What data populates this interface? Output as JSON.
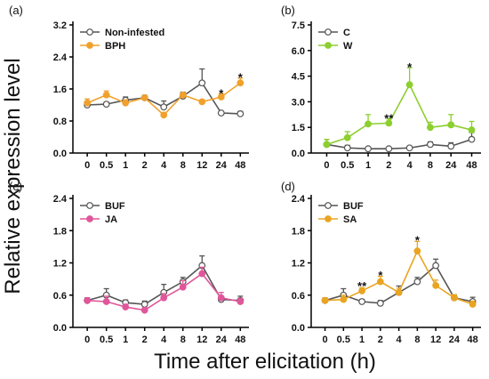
{
  "figure": {
    "ylabel": "Relative expression level",
    "xlabel": "Time after elicitation (h)"
  },
  "chart_data": [
    {
      "type": "line",
      "panel": "(a)",
      "categories": [
        "0",
        "0.5",
        "1",
        "2",
        "4",
        "8",
        "12",
        "24",
        "48"
      ],
      "yticks": [
        "0.0",
        "0.8",
        "1.6",
        "2.4",
        "3.2"
      ],
      "ylim": [
        0,
        3.2
      ],
      "legend_position": "top-left",
      "series": [
        {
          "name": "Non-infested",
          "color": "#555555",
          "marker": "open-circle",
          "values": [
            1.2,
            1.22,
            1.32,
            1.38,
            1.15,
            1.42,
            1.75,
            1.0,
            0.98
          ],
          "errors": [
            0.05,
            0.05,
            0.08,
            0.06,
            0.15,
            0.1,
            0.35,
            0.04,
            0.06
          ]
        },
        {
          "name": "BPH",
          "color": "#f0a12c",
          "marker": "filled-circle",
          "values": [
            1.25,
            1.45,
            1.25,
            1.38,
            0.95,
            1.45,
            1.28,
            1.4,
            1.75
          ],
          "errors": [
            0.1,
            0.1,
            0.08,
            0.05,
            0.05,
            0.05,
            0.05,
            0.08,
            0.12
          ]
        }
      ],
      "annotations": [
        {
          "category": "24",
          "text": "*",
          "value": 1.5
        },
        {
          "category": "48",
          "text": "*",
          "value": 1.9
        }
      ]
    },
    {
      "type": "line",
      "panel": "(b)",
      "categories": [
        "0",
        "0.5",
        "1",
        "2",
        "4",
        "8",
        "24",
        "48"
      ],
      "yticks": [
        "0.0",
        "1.5",
        "3.0",
        "4.5",
        "6.0",
        "7.5"
      ],
      "ylim": [
        0,
        7.5
      ],
      "legend_position": "top-left",
      "series": [
        {
          "name": "C",
          "color": "#555555",
          "marker": "open-circle",
          "values": [
            0.5,
            0.3,
            0.25,
            0.25,
            0.3,
            0.5,
            0.4,
            0.8
          ],
          "errors": [
            0.3,
            0.15,
            0.1,
            0.08,
            0.1,
            0.15,
            0.2,
            0.4
          ]
        },
        {
          "name": "W",
          "color": "#8ccf2e",
          "marker": "filled-circle",
          "values": [
            0.5,
            0.9,
            1.7,
            1.75,
            4.0,
            1.5,
            1.65,
            1.35
          ],
          "errors": [
            0.3,
            0.35,
            0.55,
            0.25,
            1.0,
            0.3,
            0.6,
            0.5
          ]
        }
      ],
      "annotations": [
        {
          "category": "2",
          "text": "**",
          "value": 2.05
        },
        {
          "category": "4",
          "text": "*",
          "value": 5.05
        }
      ]
    },
    {
      "type": "line",
      "panel": "(c)",
      "categories": [
        "0",
        "0.5",
        "1",
        "2",
        "4",
        "8",
        "12",
        "24",
        "48"
      ],
      "yticks": [
        "0.0",
        "0.6",
        "1.2",
        "1.8",
        "2.4"
      ],
      "ylim": [
        0,
        2.4
      ],
      "legend_position": "top-left",
      "series": [
        {
          "name": "BUF",
          "color": "#555555",
          "marker": "open-circle",
          "values": [
            0.5,
            0.6,
            0.46,
            0.43,
            0.65,
            0.85,
            1.15,
            0.52,
            0.5
          ],
          "errors": [
            0.05,
            0.12,
            0.05,
            0.06,
            0.15,
            0.08,
            0.18,
            0.06,
            0.08
          ]
        },
        {
          "name": "JA",
          "color": "#e0569a",
          "marker": "filled-circle",
          "values": [
            0.5,
            0.48,
            0.38,
            0.32,
            0.55,
            0.75,
            1.0,
            0.55,
            0.48
          ],
          "errors": [
            0.04,
            0.1,
            0.05,
            0.05,
            0.08,
            0.12,
            0.12,
            0.1,
            0.06
          ]
        }
      ],
      "annotations": []
    },
    {
      "type": "line",
      "panel": "(d)",
      "categories": [
        "0",
        "0.5",
        "1",
        "2",
        "4",
        "8",
        "12",
        "24",
        "48"
      ],
      "yticks": [
        "0.0",
        "0.6",
        "1.2",
        "1.8",
        "2.4"
      ],
      "ylim": [
        0,
        2.4
      ],
      "legend_position": "top-left",
      "series": [
        {
          "name": "BUF",
          "color": "#555555",
          "marker": "open-circle",
          "values": [
            0.5,
            0.6,
            0.48,
            0.45,
            0.65,
            0.85,
            1.15,
            0.55,
            0.48
          ],
          "errors": [
            0.05,
            0.12,
            0.04,
            0.05,
            0.12,
            0.08,
            0.12,
            0.06,
            0.08
          ]
        },
        {
          "name": "SA",
          "color": "#e9a521",
          "marker": "filled-circle",
          "values": [
            0.5,
            0.52,
            0.68,
            0.85,
            0.65,
            1.42,
            0.78,
            0.55,
            0.43
          ],
          "errors": [
            0.05,
            0.08,
            0.06,
            0.1,
            0.08,
            0.18,
            0.1,
            0.06,
            0.06
          ]
        }
      ],
      "annotations": [
        {
          "category": "1",
          "text": "**",
          "value": 0.78
        },
        {
          "category": "2",
          "text": "*",
          "value": 0.98
        },
        {
          "category": "8",
          "text": "*",
          "value": 1.63
        }
      ]
    }
  ]
}
